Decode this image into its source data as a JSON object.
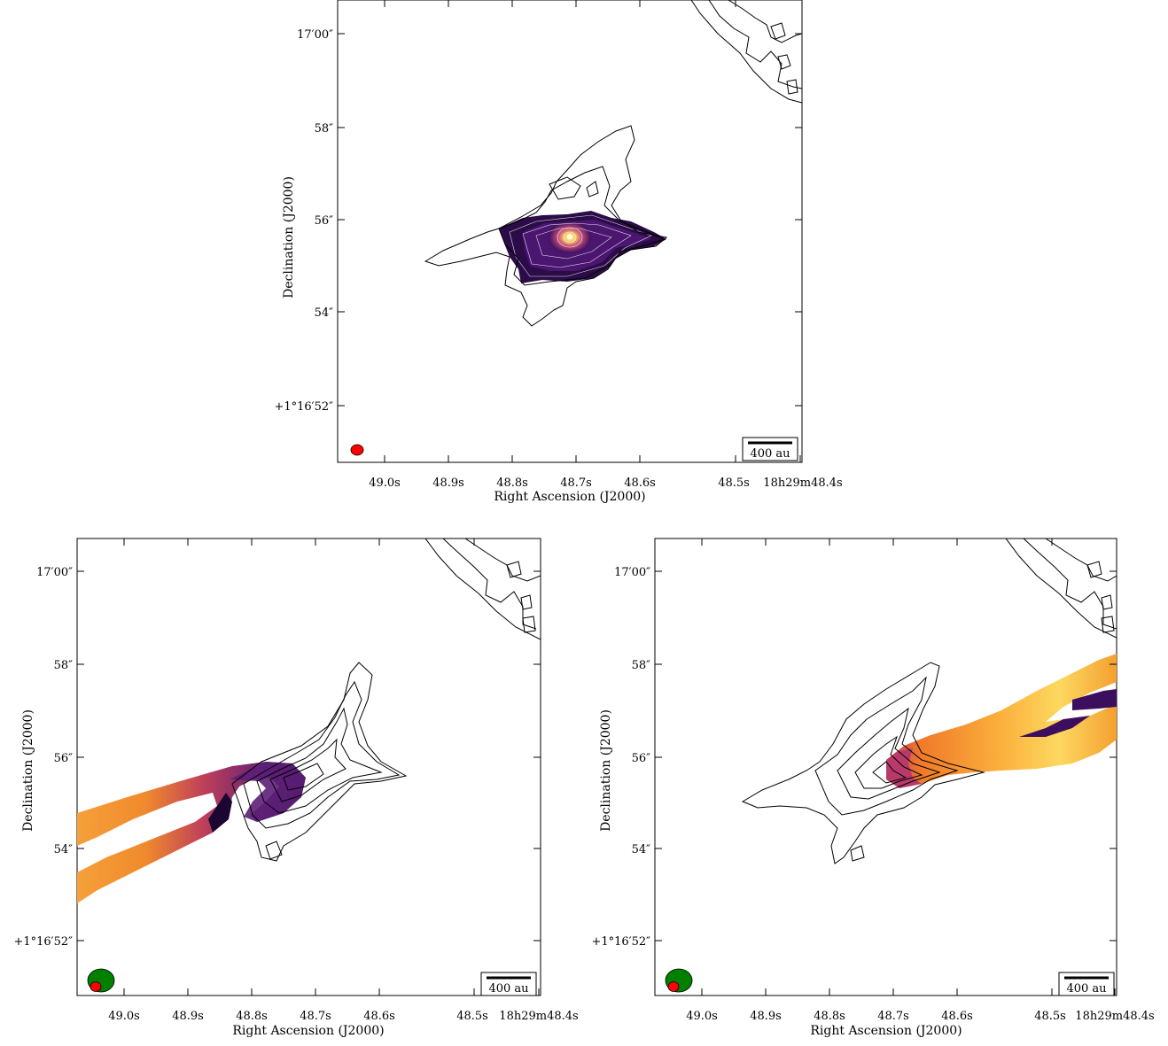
{
  "figure": {
    "panels": [
      {
        "id": "top",
        "xlabel": "Right Ascension (J2000)",
        "ylabel": "Declination (J2000)",
        "scalebar": "400 au"
      },
      {
        "id": "bottom-left",
        "xlabel": "Right Ascension (J2000)",
        "ylabel": "Declination (J2000)",
        "scalebar": "400 au"
      },
      {
        "id": "bottom-right",
        "xlabel": "Right Ascension (J2000)",
        "ylabel": "Declination (J2000)",
        "scalebar": "400 au"
      }
    ]
  },
  "chart_data": [
    {
      "type": "heatmap",
      "panel": "top",
      "xlabel": "Right Ascension (J2000)",
      "ylabel": "Declination (J2000)",
      "x_ticklabels": [
        "49.0s",
        "48.9s",
        "48.8s",
        "48.7s",
        "48.6s",
        "48.5s",
        "18h29m48.4s"
      ],
      "y_ticklabels": [
        "+1°16′52″",
        "54″",
        "56″",
        "58″",
        "17′00″"
      ],
      "contours": true,
      "colormap": "inferno",
      "scalebar": "400 au",
      "beam_colors": [
        "#ff0000"
      ]
    },
    {
      "type": "heatmap",
      "panel": "bottom-left",
      "xlabel": "Right Ascension (J2000)",
      "ylabel": "Declination (J2000)",
      "x_ticklabels": [
        "49.0s",
        "48.9s",
        "48.8s",
        "48.7s",
        "48.6s",
        "48.5s",
        "18h29m48.4s"
      ],
      "y_ticklabels": [
        "+1°16′52″",
        "54″",
        "56″",
        "58″",
        "17′00″"
      ],
      "contours": true,
      "colormap": "inferno",
      "scalebar": "400 au",
      "beam_colors": [
        "#008000",
        "#ff0000"
      ]
    },
    {
      "type": "heatmap",
      "panel": "bottom-right",
      "xlabel": "Right Ascension (J2000)",
      "ylabel": "Declination (J2000)",
      "x_ticklabels": [
        "49.0s",
        "48.9s",
        "48.8s",
        "48.7s",
        "48.6s",
        "48.5s",
        "18h29m48.4s"
      ],
      "y_ticklabels": [
        "+1°16′52″",
        "54″",
        "56″",
        "58″",
        "17′00″"
      ],
      "contours": true,
      "colormap": "inferno",
      "scalebar": "400 au",
      "beam_colors": [
        "#008000",
        "#ff0000"
      ]
    }
  ]
}
